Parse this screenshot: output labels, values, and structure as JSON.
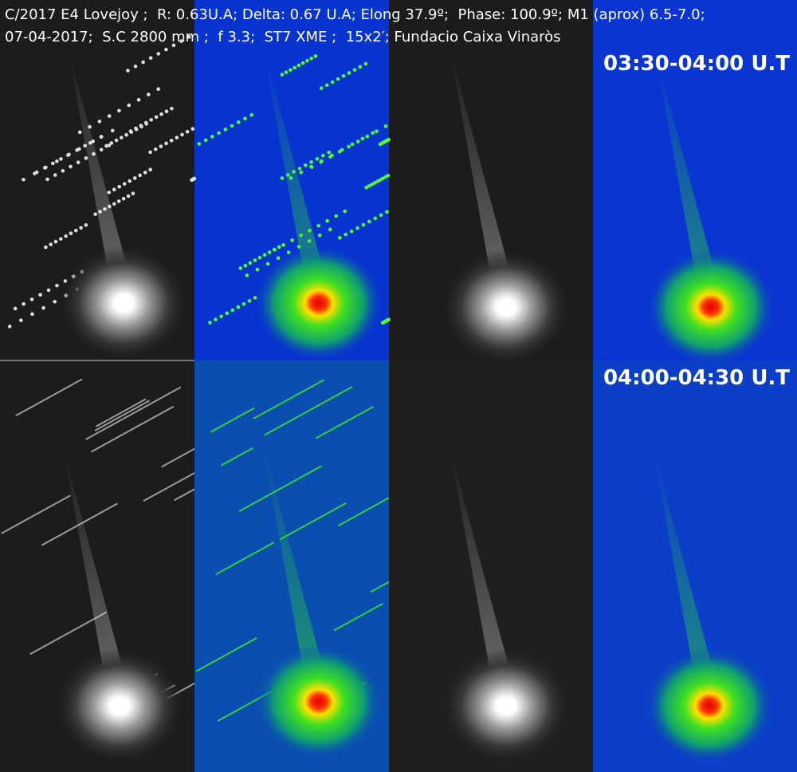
{
  "header": {
    "line1": "C/2017 E4 Lovejoy ;  R: 0.63U.A; Delta: 0.67 U.A; Elong 37.9º;  Phase: 100.9º; M1 (aprox) 6.5-7.0;",
    "line2": "07-04-2017;  S.C 2800 mm ;  f 3.3;  ST7 XME ;  15x2′; Fundacio Caixa Vinaròs"
  },
  "labels": [
    "03:30-04:00 U.T",
    "04:00-04:30 U.T"
  ]
}
